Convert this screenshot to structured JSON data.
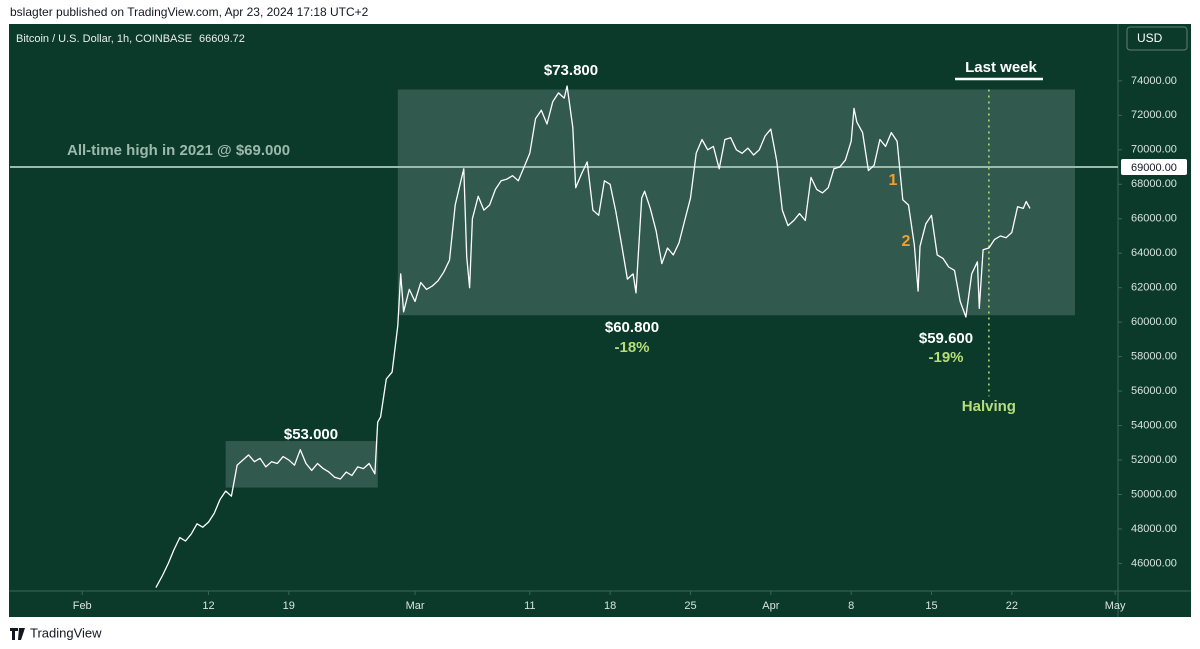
{
  "header": "bslagter published on TradingView.com, Apr 23, 2024 17:18 UTC+2",
  "footer": "TradingView",
  "chart_data": {
    "type": "line",
    "title": "Bitcoin / U.S. Dollar, 1h, COINBASE",
    "last_price": "66609.72",
    "currency": "USD",
    "color": "#ffffff",
    "xlim": [
      "01-25 17",
      "05-01 06"
    ],
    "xticks": [
      {
        "value": "02-01",
        "label": "Feb"
      },
      {
        "value": "02-12",
        "label": "12"
      },
      {
        "value": "02-19",
        "label": "19"
      },
      {
        "value": "03-01",
        "label": "Mar"
      },
      {
        "value": "03-11",
        "label": "11"
      },
      {
        "value": "03-18",
        "label": "18"
      },
      {
        "value": "03-25",
        "label": "25"
      },
      {
        "value": "04-01",
        "label": "Apr"
      },
      {
        "value": "04-08",
        "label": "8"
      },
      {
        "value": "04-15",
        "label": "15"
      },
      {
        "value": "04-22",
        "label": "22"
      },
      {
        "value": "05-01",
        "label": "May"
      }
    ],
    "ylim": [
      44400,
      77300
    ],
    "yticks": [
      {
        "value": 46000,
        "label": "46000.00"
      },
      {
        "value": 48000,
        "label": "48000.00"
      },
      {
        "value": 50000,
        "label": "50000.00"
      },
      {
        "value": 52000,
        "label": "52000.00"
      },
      {
        "value": 54000,
        "label": "54000.00"
      },
      {
        "value": 56000,
        "label": "56000.00"
      },
      {
        "value": 58000,
        "label": "58000.00"
      },
      {
        "value": 60000,
        "label": "60000.00"
      },
      {
        "value": 62000,
        "label": "62000.00"
      },
      {
        "value": 64000,
        "label": "64000.00"
      },
      {
        "value": 66000,
        "label": "66000.00"
      },
      {
        "value": 68000,
        "label": "68000.00"
      },
      {
        "value": 70000,
        "label": "70000.00"
      },
      {
        "value": 72000,
        "label": "72000.00"
      },
      {
        "value": 74000,
        "label": "74000.00"
      }
    ],
    "level": {
      "value": 69000,
      "label": "69000.00",
      "text": "All-time high in 2021 @ $69.000"
    },
    "zones": [
      {
        "x": [
          "02-13 12",
          "02-26 18"
        ],
        "y": [
          50400,
          53100
        ]
      },
      {
        "x": [
          "02-28 12",
          "04-27 12"
        ],
        "y": [
          60400,
          73500
        ]
      }
    ],
    "halving": {
      "x": "04-20",
      "label": "Halving"
    },
    "annotations": [
      "$53.000",
      "$73.800",
      "$60.800",
      "-18%",
      "$59.600",
      "-19%",
      "Last week",
      "1",
      "2"
    ],
    "x": [
      "02-07 10",
      "02-08 00",
      "02-08 12",
      "02-09 00",
      "02-09 12",
      "02-10 00",
      "02-10 12",
      "02-11 00",
      "02-11 12",
      "02-12 00",
      "02-12 12",
      "02-13 00",
      "02-13 12",
      "02-14 00",
      "02-14 12",
      "02-15 00",
      "02-15 12",
      "02-16 00",
      "02-16 12",
      "02-17 00",
      "02-17 12",
      "02-18 00",
      "02-18 12",
      "02-19 00",
      "02-19 12",
      "02-20 00",
      "02-20 12",
      "02-21 00",
      "02-21 12",
      "02-22 00",
      "02-22 12",
      "02-23 00",
      "02-23 12",
      "02-24 00",
      "02-24 12",
      "02-25 00",
      "02-25 12",
      "02-26 00",
      "02-26 12",
      "02-26 18",
      "02-27 00",
      "02-27 12",
      "02-28 00",
      "02-28 12",
      "02-28 18",
      "02-29 00",
      "02-29 12",
      "03-01 00",
      "03-01 12",
      "03-02 00",
      "03-02 12",
      "03-03 00",
      "03-03 12",
      "03-04 00",
      "03-04 12",
      "03-05 00",
      "03-05 06",
      "03-05 12",
      "03-05 18",
      "03-06 00",
      "03-06 12",
      "03-07 00",
      "03-07 12",
      "03-08 00",
      "03-08 12",
      "03-09 00",
      "03-09 12",
      "03-10 00",
      "03-10 12",
      "03-11 00",
      "03-11 12",
      "03-12 00",
      "03-12 12",
      "03-13 00",
      "03-13 12",
      "03-14 00",
      "03-14 06",
      "03-14 18",
      "03-15 00",
      "03-15 12",
      "03-16 00",
      "03-16 12",
      "03-17 00",
      "03-17 12",
      "03-18 00",
      "03-18 12",
      "03-19 00",
      "03-19 12",
      "03-20 00",
      "03-20 06",
      "03-20 18",
      "03-21 00",
      "03-21 12",
      "03-22 00",
      "03-22 12",
      "03-23 00",
      "03-23 12",
      "03-24 00",
      "03-24 12",
      "03-25 00",
      "03-25 12",
      "03-26 00",
      "03-26 12",
      "03-27 00",
      "03-27 12",
      "03-28 00",
      "03-28 12",
      "03-29 00",
      "03-29 12",
      "03-30 00",
      "03-30 12",
      "03-31 00",
      "03-31 12",
      "04-01 00",
      "04-01 12",
      "04-02 00",
      "04-02 12",
      "04-03 00",
      "04-03 12",
      "04-04 00",
      "04-04 12",
      "04-05 00",
      "04-05 12",
      "04-06 00",
      "04-06 12",
      "04-07 00",
      "04-07 12",
      "04-08 00",
      "04-08 06",
      "04-08 12",
      "04-09 00",
      "04-09 12",
      "04-10 00",
      "04-10 12",
      "04-11 00",
      "04-11 12",
      "04-12 00",
      "04-12 12",
      "04-13 00",
      "04-13 12",
      "04-13 20",
      "04-14 00",
      "04-14 12",
      "04-15 00",
      "04-15 12",
      "04-16 00",
      "04-16 12",
      "04-17 00",
      "04-17 12",
      "04-18 00",
      "04-18 12",
      "04-19 00",
      "04-19 04",
      "04-19 12",
      "04-20 00",
      "04-20 12",
      "04-21 00",
      "04-21 12",
      "04-22 00",
      "04-22 12",
      "04-23 00",
      "04-23 06",
      "04-23 14"
    ],
    "values": [
      44600,
      45300,
      46000,
      46800,
      47500,
      47300,
      47700,
      48300,
      48100,
      48400,
      48900,
      49700,
      50200,
      49900,
      51700,
      52000,
      52300,
      51900,
      52100,
      51600,
      51900,
      51800,
      52200,
      52000,
      51700,
      52600,
      51800,
      51400,
      51800,
      51500,
      51300,
      51000,
      50900,
      51300,
      51100,
      51600,
      51500,
      51800,
      51200,
      54200,
      54500,
      56700,
      57100,
      59800,
      62800,
      60600,
      61900,
      61200,
      62300,
      61900,
      62100,
      62400,
      62900,
      63600,
      66800,
      68200,
      68900,
      63800,
      62000,
      66000,
      67300,
      66500,
      66800,
      67700,
      68200,
      68300,
      68500,
      68200,
      69000,
      69800,
      71800,
      72300,
      71500,
      72800,
      73300,
      73000,
      73700,
      71300,
      67800,
      68600,
      69300,
      66500,
      66200,
      68200,
      68000,
      66400,
      64500,
      62500,
      62800,
      61700,
      67200,
      67600,
      66600,
      65300,
      63400,
      64300,
      63900,
      64600,
      65900,
      67200,
      69800,
      70600,
      70000,
      70200,
      68900,
      70600,
      70700,
      70000,
      69800,
      70100,
      69700,
      70000,
      70800,
      71200,
      69400,
      66500,
      65600,
      65900,
      66300,
      65900,
      68400,
      67700,
      67500,
      67800,
      68900,
      69000,
      69400,
      70500,
      72400,
      71600,
      71000,
      68800,
      69100,
      70600,
      70200,
      71000,
      70500,
      67100,
      66800,
      64500,
      61800,
      64400,
      65700,
      66200,
      63900,
      63700,
      63200,
      63000,
      61200,
      60300,
      62800,
      63500,
      60800,
      64200,
      64300,
      64800,
      65000,
      64900,
      65200,
      66700,
      66600,
      67000,
      66600
    ]
  }
}
